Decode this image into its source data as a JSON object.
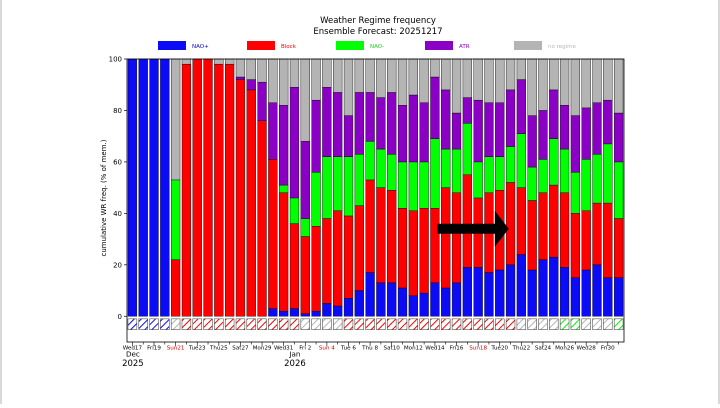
{
  "chart_data": {
    "type": "bar",
    "stacked": true,
    "title": "Weather Regime frequency",
    "subtitle": "Ensemble Forecast: 20251217",
    "ylabel": "cumulative WR freq. (% of mem.)",
    "xlabel": "",
    "ylim": [
      -10,
      100
    ],
    "yticks": [
      0,
      20,
      40,
      60,
      80,
      100
    ],
    "legend_position": "top",
    "legend": [
      {
        "key": "nao_plus",
        "label": "NAO+",
        "color": "#0b0bf5",
        "text_color": "#0000cc"
      },
      {
        "key": "block",
        "label": "Block",
        "color": "#ff0000",
        "text_color": "#ee0000"
      },
      {
        "key": "nao_minus",
        "label": "NAO-",
        "color": "#00ff00",
        "text_color": "#22cc22"
      },
      {
        "key": "atr",
        "label": "ATR",
        "color": "#8a00c4",
        "text_color": "#8800bb"
      },
      {
        "key": "no_regime",
        "label": "no regime",
        "color": "#b4b4b4",
        "text_color": "#b8b8b8"
      }
    ],
    "categories": [
      "Dec17",
      "Dec18",
      "Dec19",
      "Dec20",
      "Dec21",
      "Dec22",
      "Dec23",
      "Dec24",
      "Dec25",
      "Dec26",
      "Dec27",
      "Dec28",
      "Dec29",
      "Dec30",
      "Dec31",
      "Jan1",
      "Jan2",
      "Jan3",
      "Jan4",
      "Jan5",
      "Jan6",
      "Jan7",
      "Jan8",
      "Jan9",
      "Jan10",
      "Jan11",
      "Jan12",
      "Jan13",
      "Jan14",
      "Jan15",
      "Jan16",
      "Jan17",
      "Jan18",
      "Jan19",
      "Jan20",
      "Jan21",
      "Jan22",
      "Jan23",
      "Jan24",
      "Jan25",
      "Jan26",
      "Jan27",
      "Jan28",
      "Jan29",
      "Jan30",
      "Jan31"
    ],
    "series": [
      {
        "key": "nao_plus",
        "name": "NAO+",
        "values": [
          100,
          100,
          100,
          100,
          0,
          0,
          0,
          0,
          0,
          0,
          0,
          0,
          0,
          3,
          2,
          3,
          1,
          2,
          5,
          4,
          7,
          10,
          17,
          13,
          13,
          11,
          8,
          9,
          13,
          11,
          13,
          19,
          19,
          17,
          18,
          20,
          24,
          18,
          22,
          23,
          19,
          15,
          18,
          20,
          15,
          15
        ]
      },
      {
        "key": "block",
        "name": "Block",
        "values": [
          0,
          0,
          0,
          0,
          22,
          98,
          100,
          100,
          98,
          98,
          92,
          88,
          76,
          58,
          46,
          33,
          30,
          33,
          33,
          37,
          32,
          33,
          36,
          37,
          36,
          31,
          33,
          33,
          29,
          39,
          35,
          36,
          27,
          31,
          31,
          32,
          26,
          27,
          26,
          28,
          29,
          25,
          23,
          24,
          29,
          23
        ]
      },
      {
        "key": "nao_minus",
        "name": "NAO-",
        "values": [
          0,
          0,
          0,
          0,
          31,
          0,
          0,
          0,
          0,
          0,
          0,
          0,
          0,
          0,
          3,
          10,
          7,
          21,
          24,
          21,
          23,
          20,
          15,
          15,
          14,
          18,
          19,
          18,
          27,
          15,
          17,
          20,
          14,
          14,
          13,
          14,
          21,
          13,
          13,
          18,
          17,
          16,
          20,
          19,
          23,
          22
        ]
      },
      {
        "key": "atr",
        "name": "ATR",
        "values": [
          0,
          0,
          0,
          0,
          0,
          0,
          0,
          0,
          0,
          0,
          1,
          4,
          15,
          22,
          31,
          43,
          30,
          28,
          27,
          25,
          16,
          24,
          19,
          20,
          24,
          22,
          26,
          23,
          24,
          23,
          14,
          10,
          24,
          21,
          21,
          22,
          21,
          20,
          19,
          19,
          17,
          22,
          20,
          20,
          17,
          19
        ]
      },
      {
        "key": "no_regime",
        "name": "no regime",
        "values": [
          0,
          0,
          0,
          0,
          47,
          2,
          0,
          0,
          2,
          2,
          7,
          8,
          9,
          17,
          18,
          11,
          32,
          16,
          11,
          13,
          22,
          13,
          13,
          15,
          13,
          18,
          14,
          17,
          7,
          12,
          21,
          15,
          16,
          17,
          17,
          12,
          8,
          22,
          20,
          12,
          18,
          22,
          19,
          17,
          16,
          21
        ]
      }
    ],
    "initial_regime": [
      "nao_plus",
      "nao_plus",
      "nao_plus",
      "nao_plus",
      "no_regime",
      "block",
      "block",
      "block",
      "block",
      "block",
      "block",
      "block",
      "block",
      "block",
      "block",
      "block",
      "no_regime",
      "no_regime",
      "no_regime",
      "no_regime",
      "block",
      "block",
      "block",
      "block",
      "block",
      "block",
      "block",
      "block",
      "block",
      "block",
      "block",
      "block",
      "block",
      "block",
      "block",
      "block",
      "no_regime",
      "no_regime",
      "no_regime",
      "no_regime",
      "nao_minus",
      "nao_minus",
      "no_regime",
      "no_regime",
      "no_regime",
      "nao_minus"
    ],
    "tick_labels": [
      {
        "index": 0,
        "label": "Wed17",
        "color": "#000000"
      },
      {
        "index": 2,
        "label": "Fri19",
        "color": "#000000"
      },
      {
        "index": 4,
        "label": "Sun21",
        "color": "#cc0000"
      },
      {
        "index": 6,
        "label": "Tue23",
        "color": "#000000"
      },
      {
        "index": 8,
        "label": "Thu25",
        "color": "#000000"
      },
      {
        "index": 10,
        "label": "Sat27",
        "color": "#000000"
      },
      {
        "index": 12,
        "label": "Mon29",
        "color": "#000000"
      },
      {
        "index": 14,
        "label": "Wed31",
        "color": "#000000"
      },
      {
        "index": 16,
        "label": "Fri 2",
        "color": "#000000"
      },
      {
        "index": 18,
        "label": "Sun 4",
        "color": "#cc0000"
      },
      {
        "index": 20,
        "label": "Tue 6",
        "color": "#000000"
      },
      {
        "index": 22,
        "label": "Thu 8",
        "color": "#000000"
      },
      {
        "index": 24,
        "label": "Sat10",
        "color": "#000000"
      },
      {
        "index": 26,
        "label": "Mon12",
        "color": "#000000"
      },
      {
        "index": 28,
        "label": "Wed14",
        "color": "#000000"
      },
      {
        "index": 30,
        "label": "Fri16",
        "color": "#000000"
      },
      {
        "index": 32,
        "label": "Sun18",
        "color": "#cc0000"
      },
      {
        "index": 34,
        "label": "Tue20",
        "color": "#000000"
      },
      {
        "index": 36,
        "label": "Thu22",
        "color": "#000000"
      },
      {
        "index": 38,
        "label": "Sat24",
        "color": "#000000"
      },
      {
        "index": 40,
        "label": "Mon26",
        "color": "#000000"
      },
      {
        "index": 42,
        "label": "Wed28",
        "color": "#000000"
      },
      {
        "index": 44,
        "label": "Fri30",
        "color": "#000000"
      }
    ],
    "month_labels": [
      {
        "index": 0,
        "month": "Dec",
        "year": "2025"
      },
      {
        "index": 15,
        "month": "Jan",
        "year": "2026"
      }
    ],
    "annotations": [
      {
        "type": "arrow",
        "direction": "right",
        "color": "#000000",
        "from_index": 29,
        "to_index": 35,
        "y": 34
      }
    ]
  }
}
